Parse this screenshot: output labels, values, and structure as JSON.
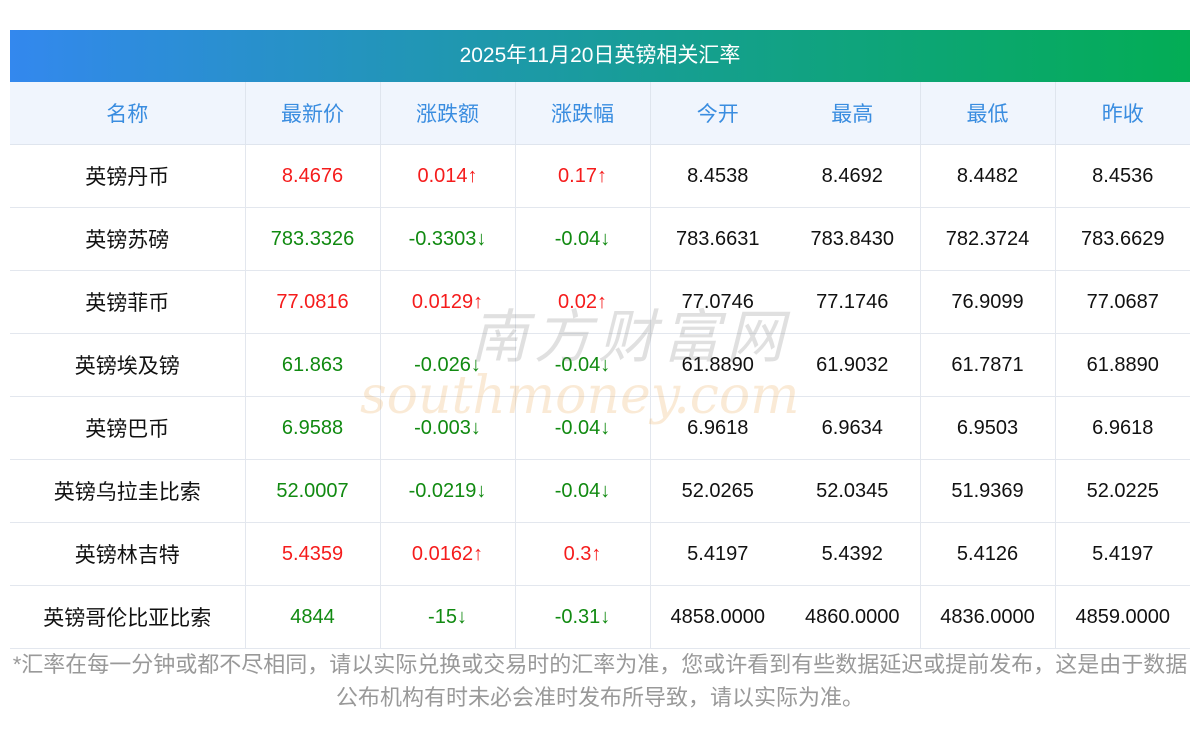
{
  "title": "2025年11月20日英镑相关汇率",
  "columns": [
    "名称",
    "最新价",
    "涨跌额",
    "涨跌幅",
    "今开",
    "最高",
    "最低",
    "昨收"
  ],
  "rows": [
    {
      "name": "英镑丹币",
      "latest": "8.4676",
      "change": "0.014↑",
      "pct": "0.17↑",
      "open": "8.4538",
      "high": "8.4692",
      "low": "8.4482",
      "prev": "8.4536",
      "dir": "up"
    },
    {
      "name": "英镑苏磅",
      "latest": "783.3326",
      "change": "-0.3303↓",
      "pct": "-0.04↓",
      "open": "783.6631",
      "high": "783.8430",
      "low": "782.3724",
      "prev": "783.6629",
      "dir": "down"
    },
    {
      "name": "英镑菲币",
      "latest": "77.0816",
      "change": "0.0129↑",
      "pct": "0.02↑",
      "open": "77.0746",
      "high": "77.1746",
      "low": "76.9099",
      "prev": "77.0687",
      "dir": "up"
    },
    {
      "name": "英镑埃及镑",
      "latest": "61.863",
      "change": "-0.026↓",
      "pct": "-0.04↓",
      "open": "61.8890",
      "high": "61.9032",
      "low": "61.7871",
      "prev": "61.8890",
      "dir": "down"
    },
    {
      "name": "英镑巴币",
      "latest": "6.9588",
      "change": "-0.003↓",
      "pct": "-0.04↓",
      "open": "6.9618",
      "high": "6.9634",
      "low": "6.9503",
      "prev": "6.9618",
      "dir": "down"
    },
    {
      "name": "英镑乌拉圭比索",
      "latest": "52.0007",
      "change": "-0.0219↓",
      "pct": "-0.04↓",
      "open": "52.0265",
      "high": "52.0345",
      "low": "51.9369",
      "prev": "52.0225",
      "dir": "down"
    },
    {
      "name": "英镑林吉特",
      "latest": "5.4359",
      "change": "0.0162↑",
      "pct": "0.3↑",
      "open": "5.4197",
      "high": "5.4392",
      "low": "5.4126",
      "prev": "5.4197",
      "dir": "up"
    },
    {
      "name": "英镑哥伦比亚比索",
      "latest": "4844",
      "change": "-15↓",
      "pct": "-0.31↓",
      "open": "4858.0000",
      "high": "4860.0000",
      "low": "4836.0000",
      "prev": "4859.0000",
      "dir": "down"
    }
  ],
  "note": "*汇率在每一分钟或都不尽相同，请以实际兑换或交易时的汇率为准，您或许看到有些数据延迟或提前发布，这是由于数据公布机构有时未必会准时发布所导致，请以实际为准。",
  "watermark": {
    "cn": "南方财富网",
    "en": "southmoney.com"
  },
  "colors": {
    "up": "#f51c1c",
    "down": "#118a11",
    "header": "#3a8de0"
  }
}
